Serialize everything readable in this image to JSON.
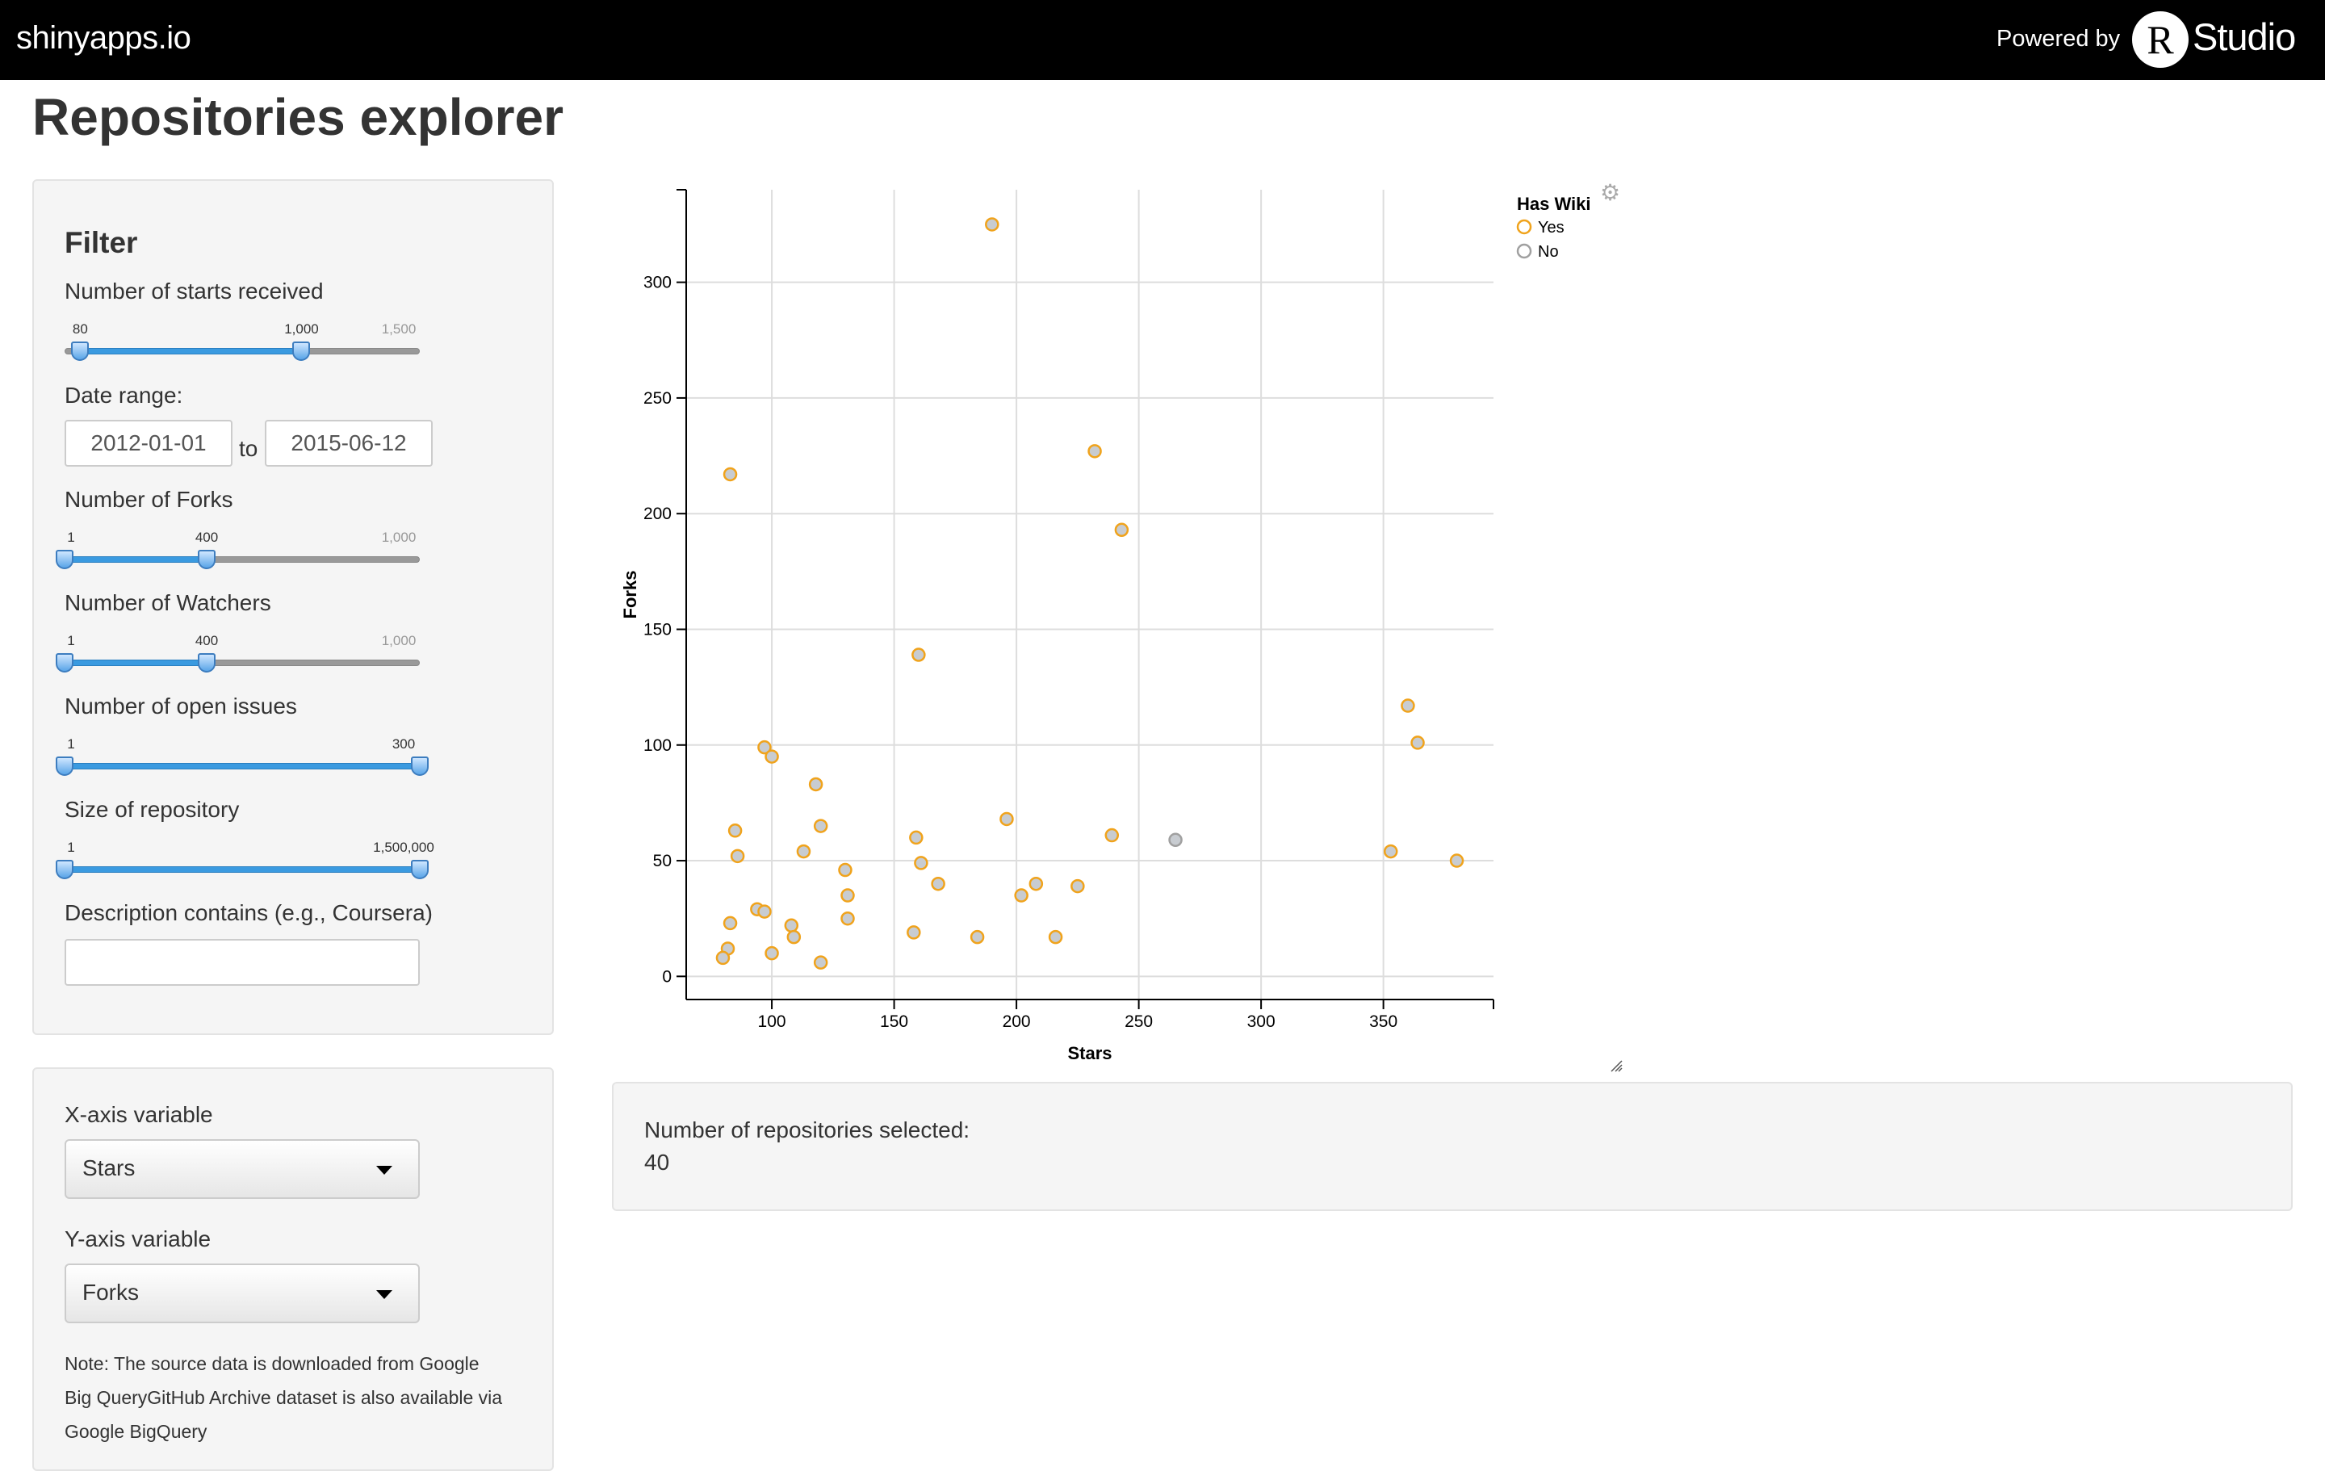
{
  "header": {
    "brand": "shinyapps.io",
    "powered_by": "Powered by",
    "logo_letter": "R",
    "logo_text": "Studio"
  },
  "page_title": "Repositories explorer",
  "filter": {
    "heading": "Filter",
    "stars": {
      "label": "Number of starts received",
      "from": "80",
      "to": "1,000",
      "max": "1,500",
      "from_frac": 0.044,
      "to_frac": 0.667
    },
    "date_range": {
      "label": "Date range:",
      "start": "2012-01-01",
      "separator": "to",
      "end": "2015-06-12"
    },
    "forks": {
      "label": "Number of Forks",
      "from": "1",
      "to": "400",
      "max": "1,000",
      "from_frac": 0.0,
      "to_frac": 0.4
    },
    "watchers": {
      "label": "Number of Watchers",
      "from": "1",
      "to": "400",
      "max": "1,000",
      "from_frac": 0.0,
      "to_frac": 0.4
    },
    "issues": {
      "label": "Number of open issues",
      "from": "1",
      "to": "300",
      "max": "",
      "from_frac": 0.0,
      "to_frac": 1.0
    },
    "size": {
      "label": "Size of repository",
      "from": "1",
      "to": "1,500,000",
      "max": "",
      "from_frac": 0.0,
      "to_frac": 1.0
    },
    "description": {
      "label": "Description contains (e.g., Coursera)",
      "value": ""
    }
  },
  "axes_panel": {
    "x_label": "X-axis variable",
    "x_value": "Stars",
    "y_label": "Y-axis variable",
    "y_value": "Forks",
    "note_lines": [
      "Note: The source data is downloaded from Google",
      "Big QueryGitHub Archive dataset is also available via",
      "Google BigQuery"
    ]
  },
  "results": {
    "label": "Number of repositories selected:",
    "value": "40"
  },
  "colors": {
    "yes_stroke": "#f0a31c",
    "fill": "#c8ccd1",
    "no_stroke": "#a0a0a0",
    "slider_fill": "#3a9ae0"
  },
  "icons": {
    "settings": "gear-icon",
    "resize": "resize-handle-icon"
  },
  "chart_data": {
    "type": "scatter",
    "title": "",
    "xlabel": "Stars",
    "ylabel": "Forks",
    "xlim": [
      65,
      395
    ],
    "ylim": [
      -10,
      340
    ],
    "xticks": [
      100,
      150,
      200,
      250,
      300,
      350
    ],
    "yticks": [
      0,
      50,
      100,
      150,
      200,
      250,
      300
    ],
    "grid": true,
    "legend": {
      "title": "Has Wiki",
      "position": "right",
      "entries": [
        "Yes",
        "No"
      ]
    },
    "series": [
      {
        "name": "Yes",
        "points": [
          [
            190,
            325
          ],
          [
            232,
            227
          ],
          [
            83,
            217
          ],
          [
            243,
            193
          ],
          [
            160,
            139
          ],
          [
            360,
            117
          ],
          [
            364,
            101
          ],
          [
            97,
            99
          ],
          [
            100,
            95
          ],
          [
            118,
            83
          ],
          [
            196,
            68
          ],
          [
            120,
            65
          ],
          [
            85,
            63
          ],
          [
            159,
            60
          ],
          [
            239,
            61
          ],
          [
            86,
            52
          ],
          [
            113,
            54
          ],
          [
            161,
            49
          ],
          [
            353,
            54
          ],
          [
            380,
            50
          ],
          [
            130,
            46
          ],
          [
            168,
            40
          ],
          [
            208,
            40
          ],
          [
            225,
            39
          ],
          [
            202,
            35
          ],
          [
            131,
            35
          ],
          [
            94,
            29
          ],
          [
            97,
            28
          ],
          [
            131,
            25
          ],
          [
            83,
            23
          ],
          [
            108,
            22
          ],
          [
            109,
            17
          ],
          [
            158,
            19
          ],
          [
            184,
            17
          ],
          [
            216,
            17
          ],
          [
            82,
            12
          ],
          [
            100,
            10
          ],
          [
            80,
            8
          ],
          [
            120,
            6
          ]
        ]
      },
      {
        "name": "No",
        "points": [
          [
            265,
            59
          ]
        ]
      }
    ]
  }
}
